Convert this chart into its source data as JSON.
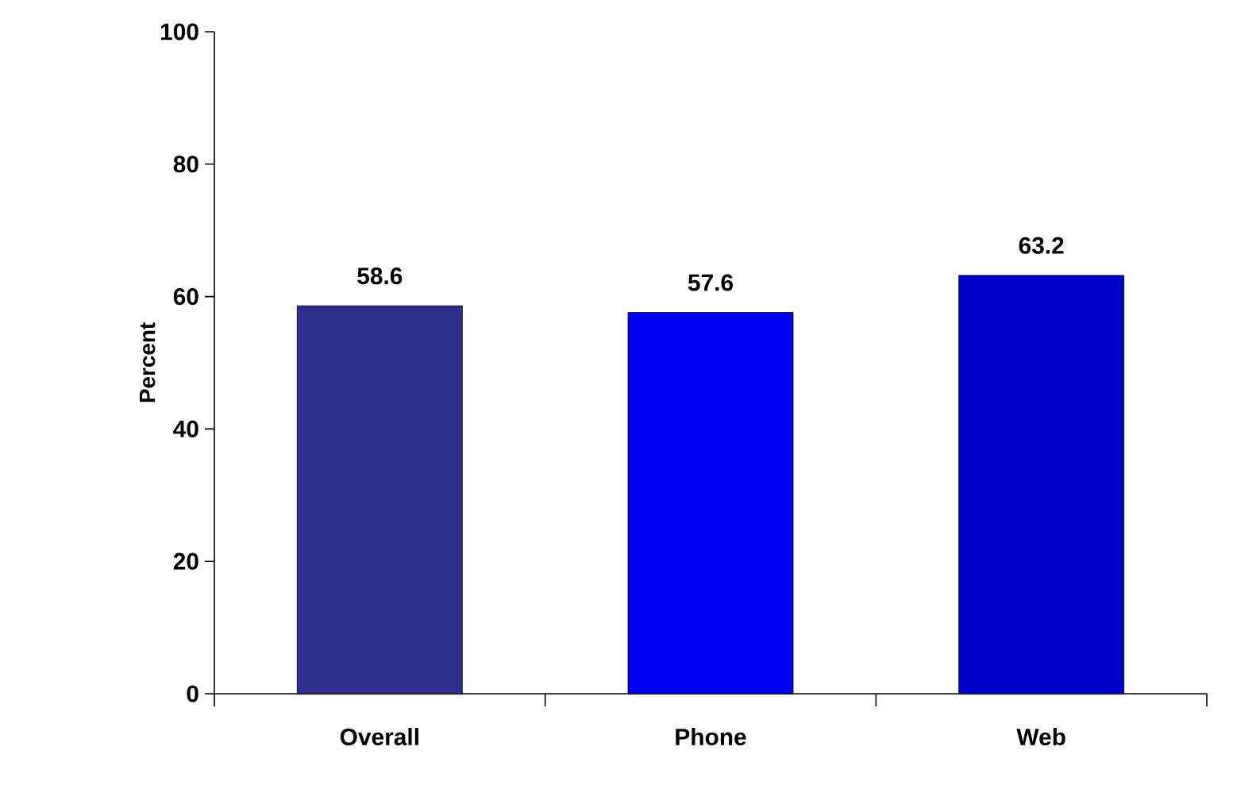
{
  "chart_data": {
    "type": "bar",
    "ylabel": "Percent",
    "categories": [
      "Overall",
      "Phone",
      "Web"
    ],
    "values": [
      58.6,
      57.6,
      63.2
    ],
    "colors": [
      "#2e2e8c",
      "#0000f0",
      "#0000c8"
    ],
    "ylim": [
      0,
      100
    ],
    "yticks": [
      0,
      20,
      40,
      60,
      80,
      100
    ],
    "data_labels": true
  }
}
